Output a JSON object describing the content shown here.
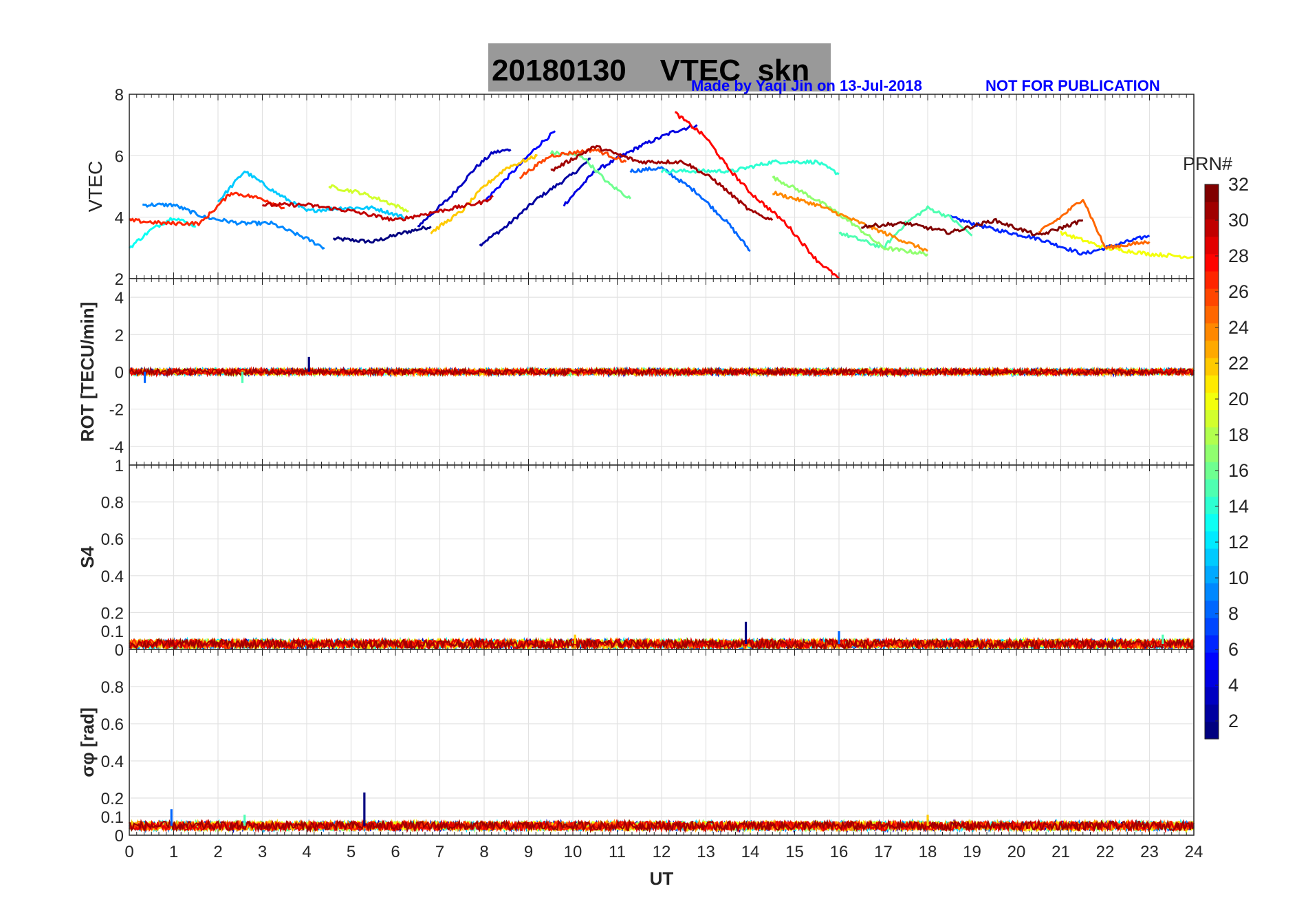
{
  "header": {
    "title": "20180130    VTEC  skn",
    "credit": "Made by Yaqi Jin on 13-Jul-2018",
    "notice": "NOT FOR PUBLICATION"
  },
  "colorbar": {
    "label": "PRN#",
    "range": [
      1,
      32
    ],
    "ticks": [
      "2",
      "4",
      "6",
      "8",
      "10",
      "12",
      "14",
      "16",
      "18",
      "20",
      "22",
      "24",
      "26",
      "28",
      "30",
      "32"
    ],
    "colormap": "jet"
  },
  "chart_data": [
    {
      "type": "line",
      "panel": "vtec",
      "ylabel": "VTEC",
      "ylim": [
        2,
        8
      ],
      "yticks": [
        "2",
        "4",
        "6",
        "8"
      ],
      "xlim": [
        0,
        24
      ],
      "grid": true,
      "series": [
        {
          "prn": 1,
          "x": [
            4.6,
            5.5,
            6.2,
            6.8
          ],
          "y": [
            3.3,
            3.2,
            3.5,
            3.7
          ]
        },
        {
          "prn": 2,
          "x": [
            7.9,
            8.5,
            9.2,
            10.0,
            10.4
          ],
          "y": [
            3.1,
            3.7,
            4.6,
            5.4,
            5.9
          ]
        },
        {
          "prn": 3,
          "x": [
            6.5,
            7.2,
            7.8,
            8.2,
            8.6
          ],
          "y": [
            3.7,
            4.6,
            5.6,
            6.1,
            6.2
          ]
        },
        {
          "prn": 4,
          "x": [
            9.8,
            10.5,
            11.5,
            12.3,
            12.8
          ],
          "y": [
            4.4,
            5.5,
            6.3,
            6.8,
            7.0
          ]
        },
        {
          "prn": 5,
          "x": [
            8.0,
            8.6,
            9.2,
            9.6
          ],
          "y": [
            4.5,
            5.4,
            6.3,
            6.8
          ]
        },
        {
          "prn": 6,
          "x": [
            18.5,
            19.5,
            20.5,
            21.5,
            22.5,
            23.0
          ],
          "y": [
            4.0,
            3.6,
            3.3,
            2.8,
            3.2,
            3.4
          ]
        },
        {
          "prn": 8,
          "x": [
            11.3,
            12.0,
            12.8,
            13.5,
            14.0
          ],
          "y": [
            5.5,
            5.6,
            4.8,
            3.8,
            2.9
          ]
        },
        {
          "prn": 9,
          "x": [
            0.3,
            1.0,
            1.7,
            2.5,
            3.2,
            4.0,
            4.4
          ],
          "y": [
            4.4,
            4.4,
            4.0,
            3.8,
            3.8,
            3.3,
            3.0
          ]
        },
        {
          "prn": 11,
          "x": [
            2.0,
            2.6,
            3.3,
            4.0,
            4.8,
            5.5,
            6.2
          ],
          "y": [
            4.5,
            5.5,
            4.8,
            4.2,
            4.3,
            4.3,
            4.0
          ]
        },
        {
          "prn": 13,
          "x": [
            0.0,
            0.5,
            1.0,
            1.5
          ],
          "y": [
            3.0,
            3.6,
            4.0,
            3.7
          ]
        },
        {
          "prn": 14,
          "x": [
            12.0,
            12.8,
            13.6,
            14.5,
            15.5,
            16.0
          ],
          "y": [
            5.5,
            5.5,
            5.5,
            5.8,
            5.8,
            5.4
          ]
        },
        {
          "prn": 15,
          "x": [
            16.0,
            17.0,
            17.5,
            18.0,
            18.5,
            19.0
          ],
          "y": [
            3.5,
            3.0,
            3.8,
            4.3,
            4.0,
            3.4
          ]
        },
        {
          "prn": 16,
          "x": [
            9.5,
            10.2,
            10.8,
            11.3
          ],
          "y": [
            6.1,
            6.0,
            5.1,
            4.6
          ]
        },
        {
          "prn": 17,
          "x": [
            14.5,
            15.2,
            15.8,
            16.3,
            17.0,
            18.0
          ],
          "y": [
            5.3,
            4.8,
            4.3,
            3.8,
            3.0,
            2.8
          ]
        },
        {
          "prn": 19,
          "x": [
            4.5,
            5.2,
            5.8,
            6.3
          ],
          "y": [
            5.0,
            4.8,
            4.5,
            4.2
          ]
        },
        {
          "prn": 20,
          "x": [
            21.0,
            22.0,
            23.0,
            24.0
          ],
          "y": [
            3.5,
            3.0,
            2.8,
            2.7
          ]
        },
        {
          "prn": 22,
          "x": [
            6.8,
            7.5,
            8.0,
            8.5,
            9.2
          ],
          "y": [
            3.5,
            4.2,
            5.0,
            5.6,
            6.0
          ]
        },
        {
          "prn": 24,
          "x": [
            14.5,
            15.5,
            16.5,
            17.5,
            18.0
          ],
          "y": [
            4.8,
            4.4,
            3.8,
            3.2,
            2.9
          ]
        },
        {
          "prn": 25,
          "x": [
            20.5,
            21.0,
            21.5,
            22.0,
            23.0
          ],
          "y": [
            3.5,
            4.0,
            4.6,
            3.0,
            3.2
          ]
        },
        {
          "prn": 26,
          "x": [
            8.8,
            9.5,
            10.5,
            11.2
          ],
          "y": [
            5.3,
            6.0,
            6.2,
            5.8
          ]
        },
        {
          "prn": 28,
          "x": [
            12.3,
            13.0,
            13.5,
            14.0,
            14.8,
            15.5,
            16.0
          ],
          "y": [
            7.4,
            6.6,
            5.6,
            4.8,
            3.8,
            2.6,
            2.0
          ]
        },
        {
          "prn": 27,
          "x": [
            0.0,
            0.8,
            1.6,
            2.3,
            3.0,
            3.5
          ],
          "y": [
            3.9,
            3.8,
            3.8,
            4.8,
            4.6,
            4.3
          ]
        },
        {
          "prn": 30,
          "x": [
            3.0,
            4.0,
            5.0,
            6.0,
            7.0,
            8.0,
            8.2
          ],
          "y": [
            4.4,
            4.4,
            4.2,
            3.9,
            4.2,
            4.5,
            4.7
          ]
        },
        {
          "prn": 31,
          "x": [
            9.5,
            10.5,
            11.5,
            12.5,
            13.2,
            14.0,
            14.5
          ],
          "y": [
            5.5,
            6.3,
            5.8,
            5.8,
            5.2,
            4.2,
            3.9
          ]
        },
        {
          "prn": 32,
          "x": [
            16.5,
            17.5,
            18.5,
            19.5,
            20.5,
            21.5
          ],
          "y": [
            3.7,
            3.8,
            3.5,
            3.9,
            3.4,
            3.9
          ]
        }
      ]
    },
    {
      "type": "line",
      "panel": "rot",
      "ylabel": "ROT [TECU/min]",
      "ylim": [
        -5,
        5
      ],
      "yticks": [
        "-4",
        "-2",
        "0",
        "2",
        "4"
      ],
      "xlim": [
        0,
        24
      ],
      "grid": true,
      "baseline": 0,
      "noise_amplitude": 0.2,
      "spikes": [
        {
          "x": 4.05,
          "y": 0.8
        },
        {
          "x": 0.35,
          "y": -0.6
        },
        {
          "x": 2.55,
          "y": -0.6
        }
      ]
    },
    {
      "type": "line",
      "panel": "s4",
      "ylabel": "S4",
      "ylim": [
        0,
        1
      ],
      "yticks": [
        "0",
        "0.1",
        "0.2",
        "0.4",
        "0.6",
        "0.8",
        "1"
      ],
      "xlim": [
        0,
        24
      ],
      "grid": true,
      "baseline": 0.03,
      "noise_amplitude": 0.03,
      "spikes": [
        {
          "x": 13.9,
          "y": 0.15
        },
        {
          "x": 16.0,
          "y": 0.1
        },
        {
          "x": 23.3,
          "y": 0.08
        },
        {
          "x": 10.05,
          "y": 0.08
        }
      ]
    },
    {
      "type": "line",
      "panel": "sigma_phi",
      "ylabel": "σφ [rad]",
      "ylim": [
        0,
        1
      ],
      "yticks": [
        "0",
        "0.1",
        "0.2",
        "0.4",
        "0.6",
        "0.8"
      ],
      "xlim": [
        0,
        24
      ],
      "xticks": [
        "0",
        "1",
        "2",
        "3",
        "4",
        "5",
        "6",
        "7",
        "8",
        "9",
        "10",
        "11",
        "12",
        "13",
        "14",
        "15",
        "16",
        "17",
        "18",
        "19",
        "20",
        "21",
        "22",
        "23",
        "24"
      ],
      "xlabel": "UT",
      "grid": true,
      "baseline": 0.05,
      "noise_amplitude": 0.03,
      "spikes": [
        {
          "x": 5.3,
          "y": 0.23
        },
        {
          "x": 0.95,
          "y": 0.14
        },
        {
          "x": 2.6,
          "y": 0.11
        },
        {
          "x": 18.0,
          "y": 0.11
        }
      ]
    }
  ]
}
